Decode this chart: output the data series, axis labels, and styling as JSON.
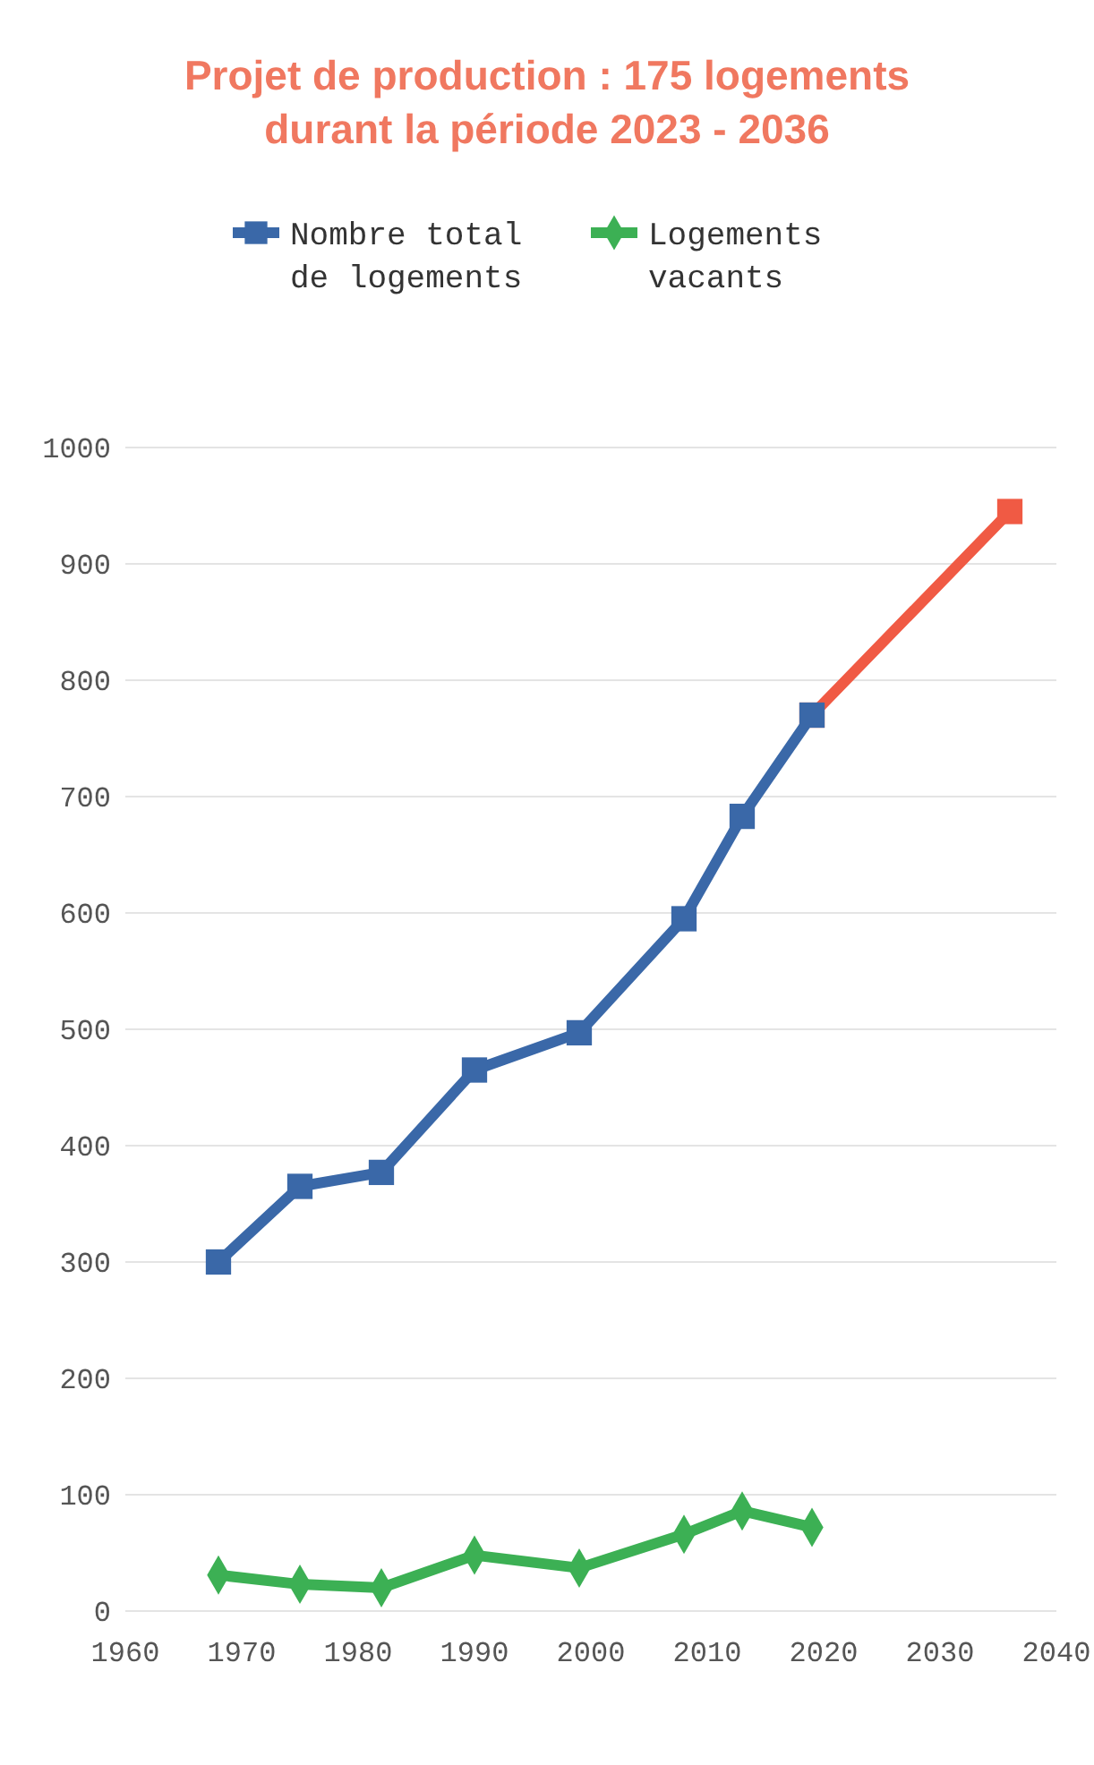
{
  "chart_data": {
    "type": "line",
    "title": "Projet de production : 175 logements durant la période 2023 - 2036",
    "xlim": [
      1960,
      2040
    ],
    "xticks": [
      1960,
      1970,
      1980,
      1990,
      2000,
      2010,
      2020,
      2030,
      2040
    ],
    "ylim": [
      0,
      1000
    ],
    "yticks": [
      0,
      100,
      200,
      300,
      400,
      500,
      600,
      700,
      800,
      900,
      1000
    ],
    "grid": "y",
    "legend": "top",
    "series": [
      {
        "color": "#f05a44",
        "marker": "square",
        "x": [
          2019,
          2036
        ],
        "values": [
          770,
          945
        ]
      },
      {
        "name": "Nombre total de logements",
        "color": "#3a68a8",
        "marker": "square",
        "x": [
          1968,
          1975,
          1982,
          1990,
          1999,
          2008,
          2013,
          2019
        ],
        "values": [
          300,
          365,
          377,
          465,
          497,
          595,
          683,
          770
        ]
      },
      {
        "name": "Logements vacants",
        "color": "#3cb054",
        "marker": "diamond",
        "x": [
          1968,
          1975,
          1982,
          1990,
          1999,
          2008,
          2013,
          2019
        ],
        "values": [
          31,
          23,
          20,
          48,
          37,
          66,
          86,
          72
        ]
      }
    ]
  }
}
